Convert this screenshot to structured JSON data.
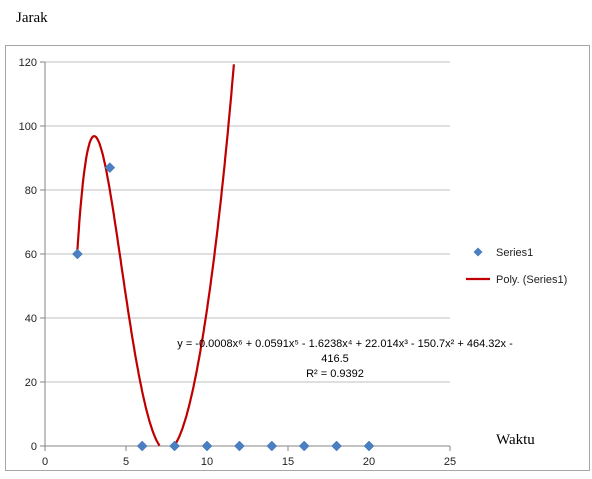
{
  "ylabel": "Jarak",
  "xlabel": "Waktu",
  "chart_data": {
    "type": "scatter",
    "xlim": [
      0,
      25
    ],
    "ylim": [
      0,
      120
    ],
    "x_ticks": [
      "0",
      "5",
      "10",
      "15",
      "20",
      "25"
    ],
    "y_ticks": [
      "0",
      "20",
      "40",
      "60",
      "80",
      "100",
      "120"
    ],
    "grid": "horizontal",
    "legend_position": "right",
    "series": [
      {
        "name": "Series1",
        "marker": "diamond",
        "color": "#4a7fc1",
        "x": [
          2,
          4,
          6,
          8,
          10,
          12,
          14,
          16,
          18,
          20
        ],
        "y": [
          60,
          87,
          0,
          0,
          0,
          0,
          0,
          0,
          0,
          0
        ]
      }
    ],
    "trendline": {
      "name": "Poly. (Series1)",
      "color": "#c00000",
      "coefficients": [
        -416.5,
        464.32,
        -150.7,
        22.014,
        -1.6238,
        0.0591,
        -0.0008
      ],
      "equation_lines": [
        "y = -0.0008x⁶ + 0.0591x⁵ - 1.6238x⁴ + 22.014x³ - 150.7x² + 464.32x -",
        "416.5"
      ],
      "r_squared": "R² = 0.9392"
    }
  }
}
